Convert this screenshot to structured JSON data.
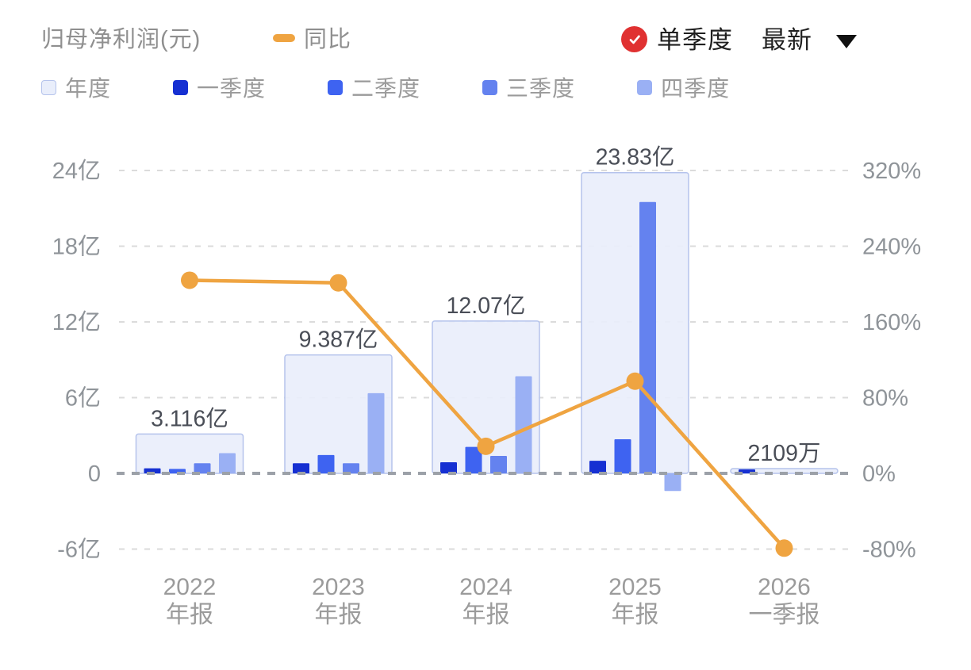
{
  "header": {
    "title": "归母净利润(元)",
    "series_line_label": "同比",
    "mode_toggle": "单季度",
    "period_select": "最新",
    "icons": {
      "mode_check": "check-circle-red",
      "period_caret": "caret-down"
    }
  },
  "legend": [
    {
      "label": "年度",
      "color": "#E9EEFB",
      "border": "#B5C3EC"
    },
    {
      "label": "一季度",
      "color": "#1630D2",
      "border": "#1630D2"
    },
    {
      "label": "二季度",
      "color": "#3E63F1",
      "border": "#3E63F1"
    },
    {
      "label": "三季度",
      "color": "#6482EF",
      "border": "#6482EF"
    },
    {
      "label": "四季度",
      "color": "#9AB0F4",
      "border": "#9AB0F4"
    }
  ],
  "colors": {
    "line": "#EFA441",
    "grid": "#DBDBDB",
    "zero_line": "#9CA1A8",
    "axis_text": "#8F9499",
    "value_label": "#4A4E57",
    "category_text": "#9B9B9B",
    "header_text": "#8F8F8F",
    "control_text": "#1F1F1F",
    "badge_red": "#E03131",
    "annual_fill": "rgba(233,238,251,0.92)",
    "annual_border": "#B5C3EC"
  },
  "chart_data": {
    "type": "bar+line",
    "title": "归母净利润(元)",
    "categories": [
      [
        "2022",
        "年报"
      ],
      [
        "2023",
        "年报"
      ],
      [
        "2024",
        "年报"
      ],
      [
        "2025",
        "年报"
      ],
      [
        "2026",
        "一季报"
      ]
    ],
    "bar_unit": "亿元",
    "series": [
      {
        "name": "年度",
        "type": "bar",
        "role": "annual",
        "values": [
          3.116,
          9.387,
          12.07,
          23.83,
          0.2109
        ]
      },
      {
        "name": "一季度",
        "type": "bar",
        "values": [
          0.4,
          0.8,
          0.88,
          1.0,
          0.21
        ]
      },
      {
        "name": "二季度",
        "type": "bar",
        "values": [
          0.35,
          1.45,
          2.1,
          2.7,
          null
        ]
      },
      {
        "name": "三季度",
        "type": "bar",
        "values": [
          0.8,
          0.8,
          1.38,
          21.5,
          null
        ]
      },
      {
        "name": "四季度",
        "type": "bar",
        "values": [
          1.6,
          6.35,
          7.7,
          -1.4,
          null
        ]
      },
      {
        "name": "同比",
        "type": "line",
        "axis": "right",
        "unit": "%",
        "values": [
          204,
          201.3,
          28.6,
          97.4,
          -79
        ]
      }
    ],
    "annotations": [
      "3.116亿",
      "9.387亿",
      "12.07亿",
      "23.83亿",
      "2109万"
    ],
    "left_axis": {
      "labels": [
        "24亿",
        "18亿",
        "12亿",
        "6亿",
        "0",
        "-6亿"
      ],
      "ticks": [
        24,
        18,
        12,
        6,
        0,
        -6
      ],
      "unit": "亿"
    },
    "right_axis": {
      "labels": [
        "320%",
        "240%",
        "160%",
        "80%",
        "0%",
        "-80%"
      ],
      "ticks": [
        320,
        240,
        160,
        80,
        0,
        -80
      ],
      "unit": "%"
    },
    "grid": "dashed horizontal",
    "legend_position": "top-left"
  }
}
